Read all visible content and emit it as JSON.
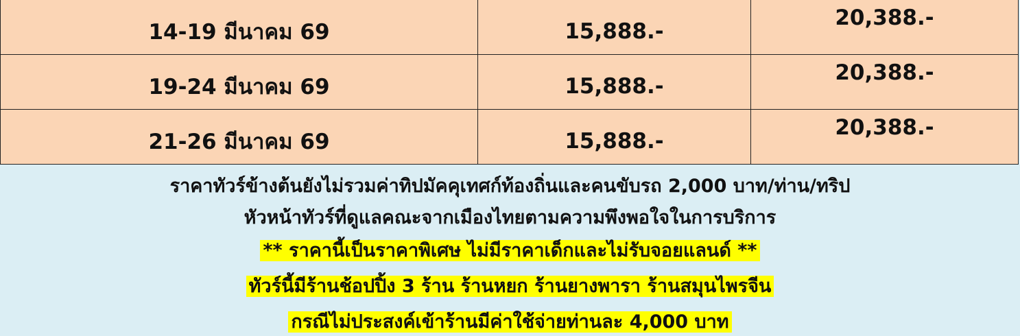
{
  "table": {
    "rows": [
      {
        "dates": "14-19 มีนาคม 69",
        "price": "15,888.-",
        "price2": "20,388.-"
      },
      {
        "dates": "19-24 มีนาคม 69",
        "price": "15,888.-",
        "price2": "20,388.-"
      },
      {
        "dates": "21-26 มีนาคม 69",
        "price": "15,888.-",
        "price2": "20,388.-"
      }
    ]
  },
  "notes": {
    "line1": "ราคาทัวร์ข้างต้นยังไม่รวมค่าทิปมัคคุเทศก์ท้องถิ่นและคนขับรถ 2,000 บาท/ท่าน/ทริป",
    "line2": "หัวหน้าทัวร์ที่ดูแลคณะจากเมืองไทยตามความพึงพอใจในการบริการ",
    "line3": "** ราคานี้เป็นราคาพิเศษ ไม่มีราคาเด็กและไม่รับจอยแลนด์ **",
    "line4": "ทัวร์นี้มีร้านช้อปปิ้ง 3 ร้าน ร้านหยก ร้านยางพารา ร้านสมุนไพรจีน",
    "line5": "กรณีไม่ประสงค์เข้าร้านมีค่าใช้จ่ายท่านละ 4,000 บาท"
  },
  "colors": {
    "row_bg": "#fbd5b5",
    "notes_bg": "#dbeef4",
    "highlight": "#ffff00"
  }
}
